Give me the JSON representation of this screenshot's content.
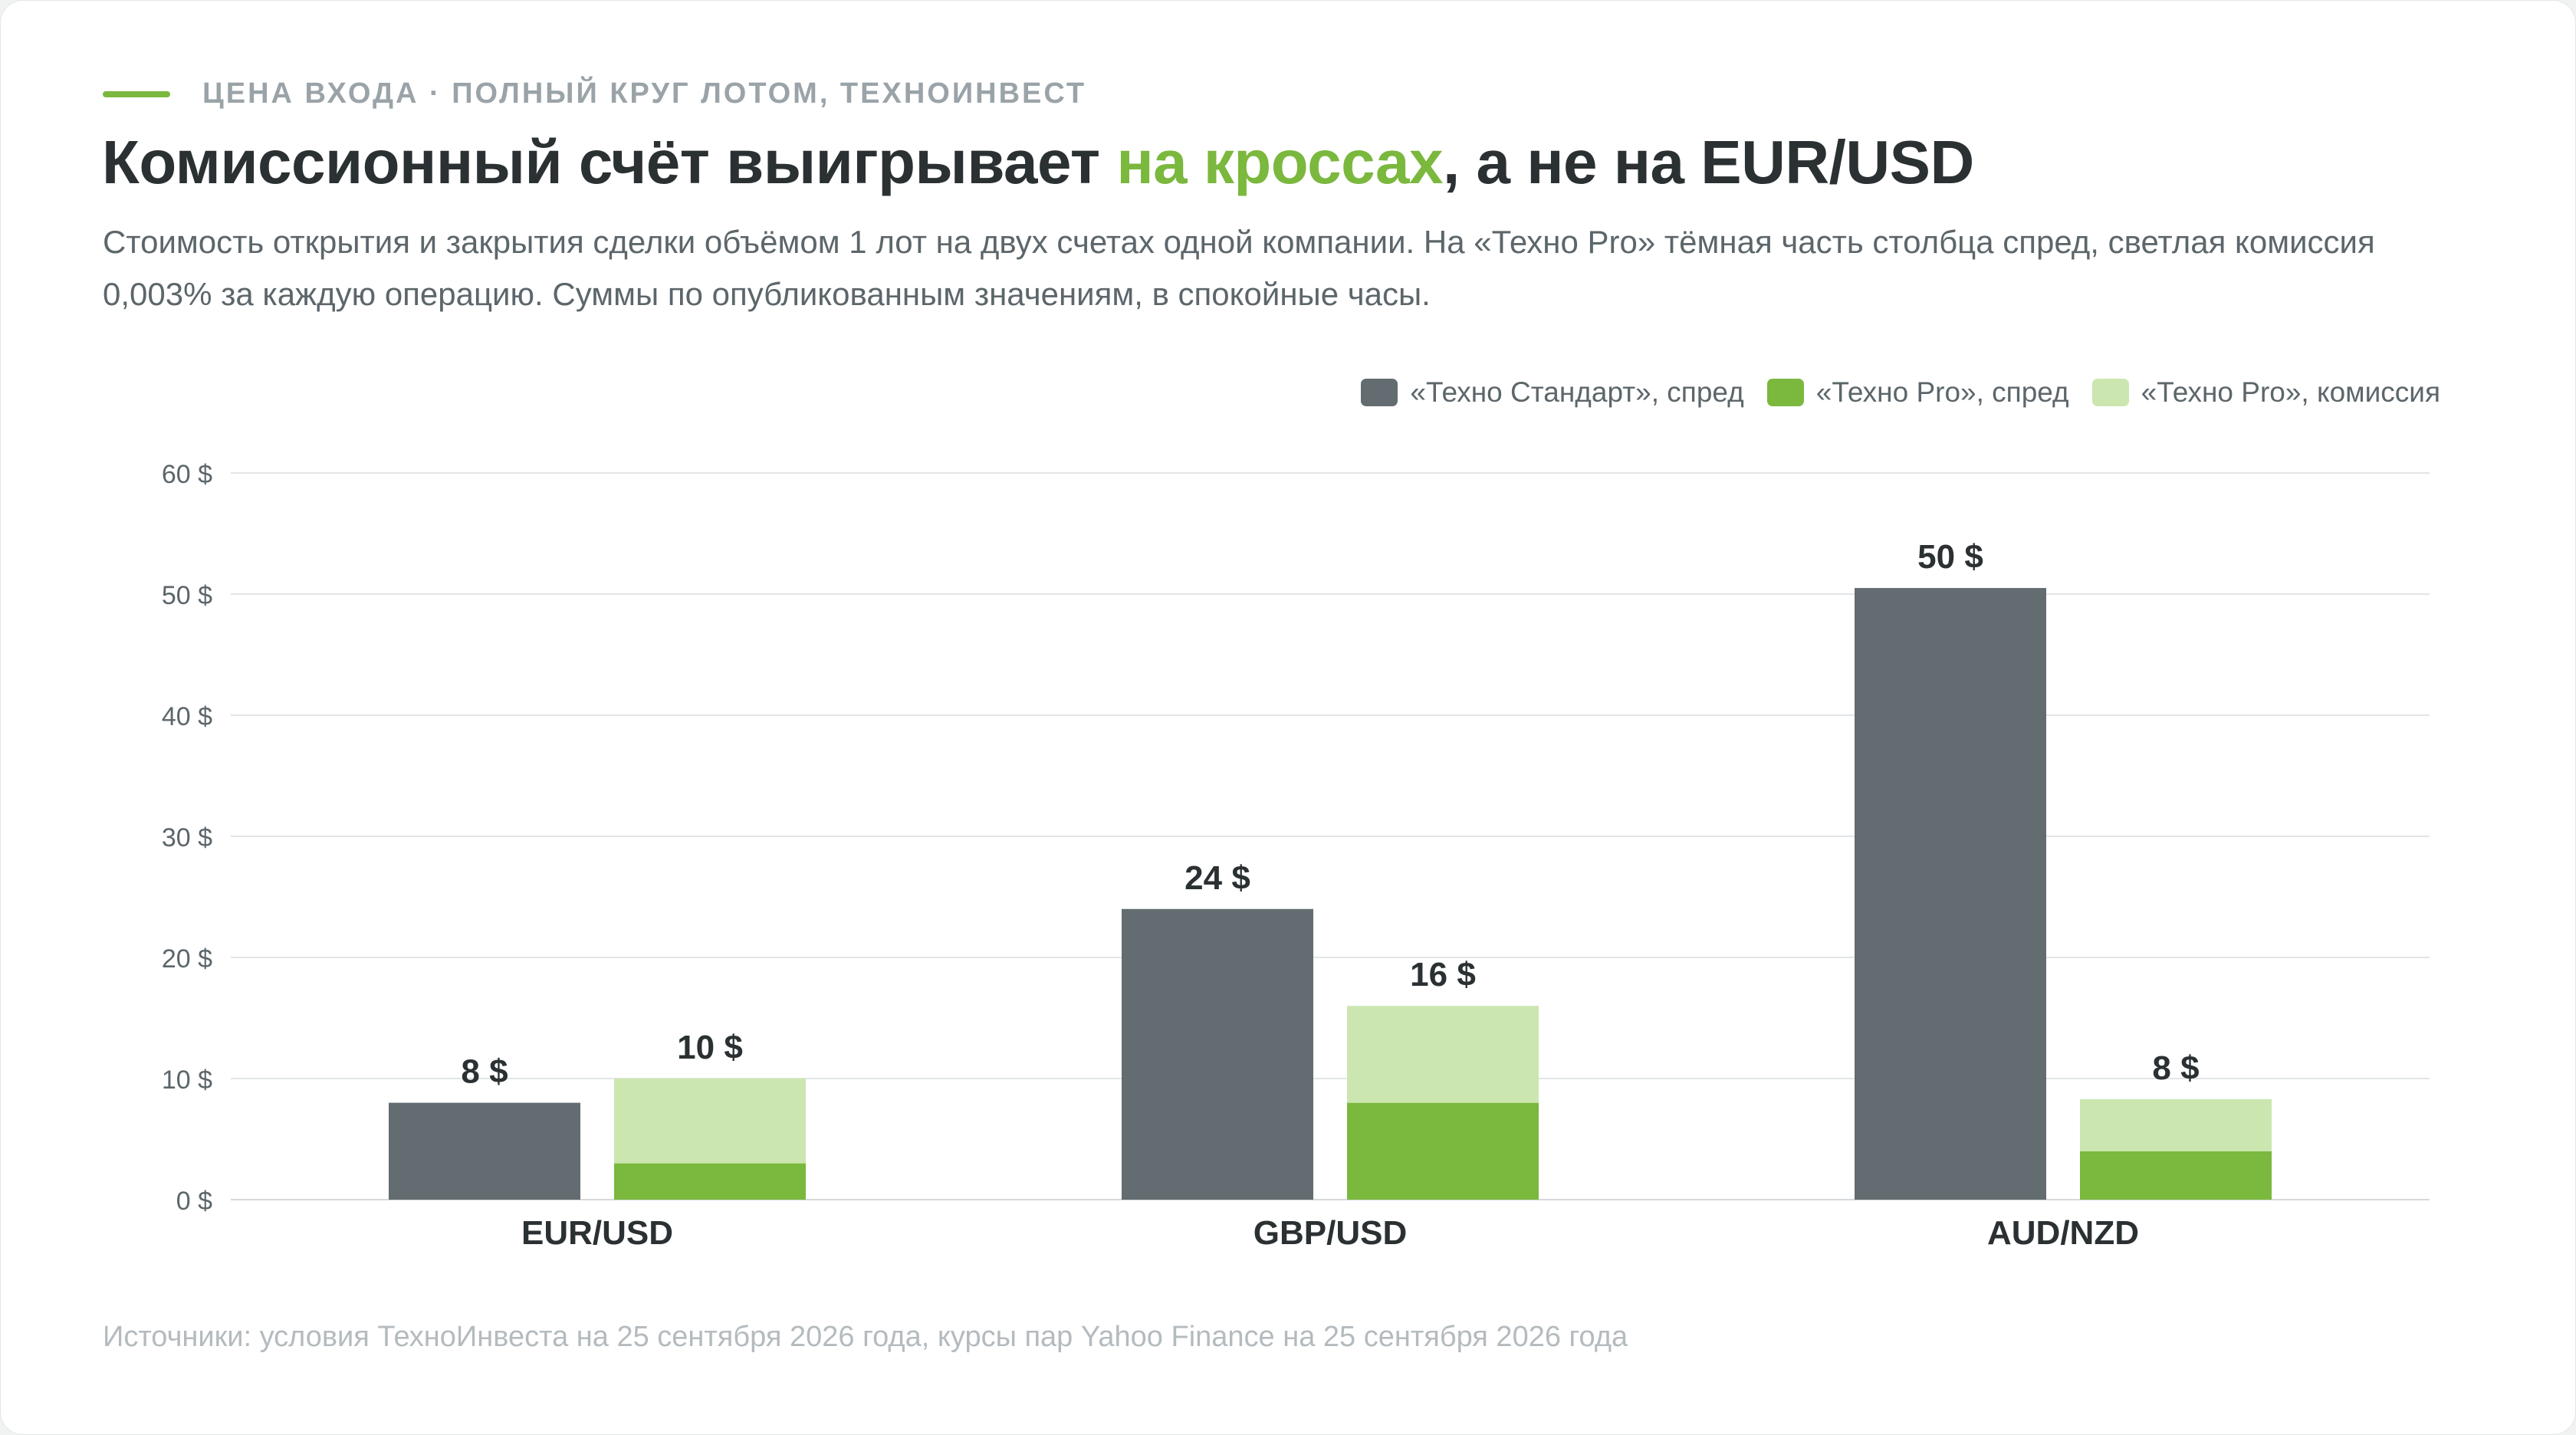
{
  "eyebrow": "ЦЕНА ВХОДА · ПОЛНЫЙ КРУГ ЛОТОМ, ТЕХНОИНВЕСТ",
  "title": {
    "part1": "Комиссионный счёт выигрывает ",
    "accent": "на кроссах",
    "part2": ", а не на EUR/USD"
  },
  "subtitle": "Стоимость открытия и закрытия сделки объёмом 1 лот на двух счетах одной компании. На «Техно Pro» тёмная часть столбца спред, светлая комиссия 0,003% за каждую операцию. Суммы по опубликованным значениям, в спокойные часы.",
  "legend": [
    {
      "label": "«Техно Стандарт», спред",
      "color": "#636c70"
    },
    {
      "label": "«Техно Pro», спред",
      "color": "#7bb83e"
    },
    {
      "label": "«Техно Pro», комиссия",
      "color": "#cce6b0"
    }
  ],
  "source": "Источники: условия ТехноИнвеста на 25 сентября 2026 года, курсы пар Yahoo Finance на 25 сентября 2026 года",
  "chart_data": {
    "type": "bar",
    "stacked_series_group": "«Техно Pro»",
    "categories": [
      "EUR/USD",
      "GBP/USD",
      "AUD/NZD"
    ],
    "series": [
      {
        "name": "«Техно Стандарт», спред",
        "stack": "standard",
        "values": [
          8,
          24,
          50.5
        ],
        "color": "#636c70"
      },
      {
        "name": "«Техно Pro», спред",
        "stack": "pro",
        "values": [
          3,
          8,
          4
        ],
        "color": "#7bb83e"
      },
      {
        "name": "«Техно Pro», комиссия",
        "stack": "pro",
        "values": [
          7,
          8,
          4.3
        ],
        "color": "#cce6b0"
      }
    ],
    "total_labels": {
      "standard": [
        "8 $",
        "24 $",
        "50 $"
      ],
      "pro": [
        "10 $",
        "16 $",
        "8 $"
      ]
    },
    "y_ticks": [
      "0 $",
      "10 $",
      "20 $",
      "30 $",
      "40 $",
      "50 $",
      "60 $"
    ],
    "ylim": [
      0,
      60
    ],
    "grid": true,
    "legend_position": "top-right"
  }
}
